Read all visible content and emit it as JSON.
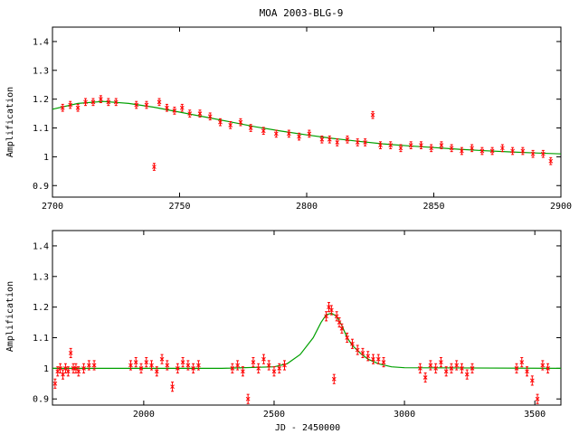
{
  "chart_data": [
    {
      "type": "scatter",
      "title": "MOA 2003-BLG-9",
      "xlabel": "",
      "ylabel": "Amplification",
      "xlim": [
        2700,
        2900
      ],
      "ylim": [
        0.86,
        1.45
      ],
      "xticks": [
        "2700",
        "2750",
        "2800",
        "2850",
        "2900"
      ],
      "yticks": [
        "0.9",
        "1",
        "1.1",
        "1.2",
        "1.3",
        "1.4"
      ],
      "grid": false,
      "legend": "none",
      "colors": {
        "data": "#ff0000",
        "model": "#00a000",
        "axes": "#000000"
      },
      "series": [
        {
          "kind": "points-with-errorbars",
          "x": [
            2704,
            2707,
            2710,
            2713,
            2716,
            2719,
            2722,
            2725,
            2733,
            2737,
            2740,
            2742,
            2745,
            2748,
            2751,
            2754,
            2758,
            2762,
            2766,
            2770,
            2774,
            2778,
            2783,
            2788,
            2793,
            2797,
            2801,
            2806,
            2809,
            2812,
            2816,
            2820,
            2823,
            2826,
            2829,
            2833,
            2837,
            2841,
            2845,
            2849,
            2853,
            2857,
            2861,
            2865,
            2869,
            2873,
            2877,
            2881,
            2885,
            2889,
            2893,
            2896
          ],
          "y": [
            1.17,
            1.18,
            1.17,
            1.19,
            1.19,
            1.2,
            1.19,
            1.19,
            1.18,
            1.18,
            0.965,
            1.19,
            1.17,
            1.16,
            1.17,
            1.15,
            1.15,
            1.14,
            1.12,
            1.11,
            1.12,
            1.1,
            1.09,
            1.08,
            1.08,
            1.07,
            1.08,
            1.06,
            1.06,
            1.05,
            1.06,
            1.05,
            1.05,
            1.145,
            1.04,
            1.04,
            1.03,
            1.04,
            1.04,
            1.03,
            1.04,
            1.03,
            1.02,
            1.03,
            1.02,
            1.02,
            1.03,
            1.02,
            1.02,
            1.01,
            1.01,
            0.985
          ],
          "err": 0.012
        }
      ],
      "model": {
        "kind": "line",
        "x": [
          2700,
          2710,
          2720,
          2730,
          2740,
          2750,
          2760,
          2770,
          2780,
          2790,
          2800,
          2810,
          2820,
          2830,
          2840,
          2850,
          2860,
          2870,
          2880,
          2890,
          2900
        ],
        "y": [
          1.165,
          1.185,
          1.192,
          1.185,
          1.172,
          1.155,
          1.138,
          1.121,
          1.104,
          1.089,
          1.076,
          1.064,
          1.054,
          1.045,
          1.038,
          1.032,
          1.026,
          1.021,
          1.017,
          1.013,
          1.01
        ]
      }
    },
    {
      "type": "scatter",
      "title": "",
      "xlabel": "JD - 2450000",
      "ylabel": "Amplification",
      "xlim": [
        1650,
        3600
      ],
      "ylim": [
        0.88,
        1.45
      ],
      "xticks": [
        "2000",
        "2500",
        "3000",
        "3500"
      ],
      "yticks": [
        "0.9",
        "1",
        "1.1",
        "1.2",
        "1.3",
        "1.4"
      ],
      "grid": false,
      "legend": "none",
      "colors": {
        "data": "#ff0000",
        "model": "#00a000",
        "axes": "#000000"
      },
      "series": [
        {
          "kind": "points-with-errorbars",
          "x": [
            1660,
            1670,
            1680,
            1690,
            1700,
            1710,
            1720,
            1730,
            1740,
            1750,
            1770,
            1790,
            1810,
            1950,
            1970,
            1990,
            2010,
            2030,
            2050,
            2070,
            2090,
            2110,
            2130,
            2150,
            2170,
            2190,
            2210,
            2340,
            2360,
            2380,
            2400,
            2420,
            2440,
            2460,
            2480,
            2500,
            2520,
            2540,
            2700,
            2710,
            2720,
            2730,
            2740,
            2750,
            2760,
            2780,
            2800,
            2820,
            2840,
            2860,
            2880,
            2900,
            2920,
            3060,
            3080,
            3100,
            3120,
            3140,
            3160,
            3180,
            3200,
            3220,
            3240,
            3260,
            3430,
            3450,
            3470,
            3490,
            3510,
            3530,
            3550
          ],
          "y": [
            0.95,
            0.99,
            1.0,
            0.98,
            1.0,
            0.99,
            1.05,
            1.0,
            1.0,
            0.99,
            1.0,
            1.01,
            1.01,
            1.01,
            1.02,
            1.0,
            1.02,
            1.01,
            0.99,
            1.03,
            1.01,
            0.94,
            1.0,
            1.02,
            1.01,
            1.0,
            1.01,
            1.0,
            1.01,
            0.99,
            0.9,
            1.02,
            1.0,
            1.03,
            1.01,
            0.99,
            1.0,
            1.01,
            1.17,
            1.2,
            1.19,
            0.965,
            1.17,
            1.15,
            1.13,
            1.1,
            1.08,
            1.06,
            1.05,
            1.04,
            1.03,
            1.03,
            1.02,
            1.0,
            0.97,
            1.01,
            1.0,
            1.02,
            0.99,
            1.0,
            1.01,
            1.0,
            0.98,
            1.0,
            1.0,
            1.02,
            0.99,
            0.96,
            0.9,
            1.01,
            1.0
          ],
          "err": 0.015
        }
      ],
      "model": {
        "kind": "line",
        "x": [
          1650,
          2300,
          2500,
          2550,
          2600,
          2650,
          2680,
          2700,
          2720,
          2740,
          2760,
          2780,
          2800,
          2830,
          2860,
          2900,
          2950,
          3000,
          3600
        ],
        "y": [
          1.0,
          1.0,
          1.005,
          1.015,
          1.045,
          1.1,
          1.15,
          1.175,
          1.18,
          1.17,
          1.14,
          1.1,
          1.075,
          1.05,
          1.03,
          1.015,
          1.005,
          1.002,
          1.0
        ]
      }
    }
  ]
}
